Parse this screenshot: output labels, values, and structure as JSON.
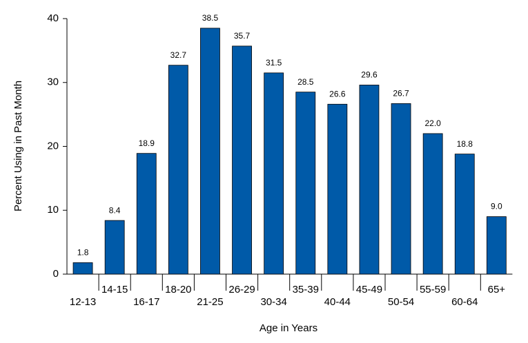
{
  "chart_data": {
    "type": "bar",
    "x_label": "Age in Years",
    "y_label": "Percent Using in Past Month",
    "categories": [
      "12-13",
      "14-15",
      "16-17",
      "18-20",
      "21-25",
      "26-29",
      "30-34",
      "35-39",
      "40-44",
      "45-49",
      "50-54",
      "55-59",
      "60-64",
      "65+"
    ],
    "values": [
      1.8,
      8.4,
      18.9,
      32.7,
      38.5,
      35.7,
      31.5,
      28.5,
      26.6,
      29.6,
      26.7,
      22.0,
      18.8,
      9.0
    ],
    "value_labels": [
      "1.8",
      "8.4",
      "18.9",
      "32.7",
      "38.5",
      "35.7",
      "31.5",
      "28.5",
      "26.6",
      "29.6",
      "26.7",
      "22.0",
      "18.8",
      "9.0"
    ],
    "color": "#005aa8",
    "ylim": [
      0,
      40
    ],
    "yticks": [
      0,
      10,
      20,
      30,
      40
    ],
    "grid": false
  }
}
